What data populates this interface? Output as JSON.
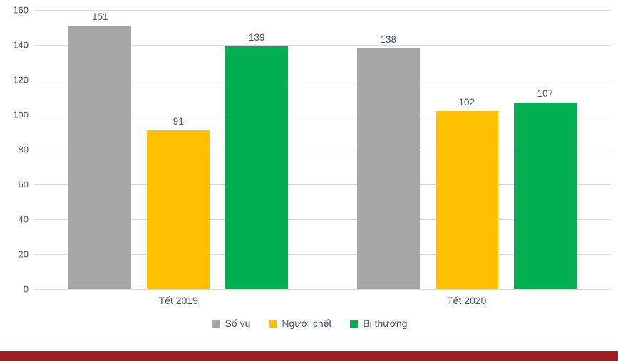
{
  "chart_data": {
    "type": "bar",
    "title": "",
    "xlabel": "",
    "ylabel": "",
    "categories": [
      "Tết 2019",
      "Tết 2020"
    ],
    "series": [
      {
        "name": "Số vụ",
        "color": "#a6a6a6",
        "values": [
          151,
          138
        ]
      },
      {
        "name": "Người chết",
        "color": "#ffc000",
        "values": [
          91,
          102
        ]
      },
      {
        "name": "Bị thương",
        "color": "#00b050",
        "values": [
          139,
          107
        ]
      }
    ],
    "ylim": [
      0,
      160
    ],
    "ytick_step": 20,
    "grid": "horizontal",
    "legend_position": "bottom"
  },
  "colors": {
    "text": "#44546a",
    "gridline": "#d9d9d9",
    "background": "#ffffff",
    "footer_bar": "#9f1d1f"
  }
}
